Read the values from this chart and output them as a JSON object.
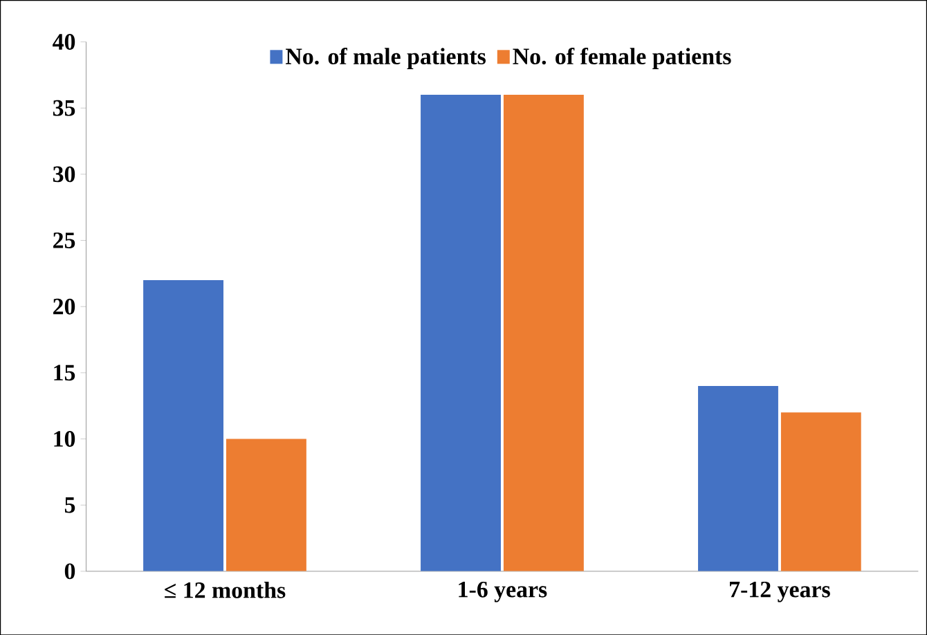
{
  "chart_data": {
    "type": "bar",
    "categories": [
      "≤ 12 months",
      "1-6 years",
      "7-12 years"
    ],
    "series": [
      {
        "name": "No. of male patients",
        "color": "#4472c4",
        "values": [
          22,
          36,
          14
        ]
      },
      {
        "name": "No. of female patients",
        "color": "#ed7d31",
        "values": [
          10,
          36,
          12
        ]
      }
    ],
    "ylim": [
      0,
      40
    ],
    "yticks": [
      0,
      5,
      10,
      15,
      20,
      25,
      30,
      35,
      40
    ],
    "legend": "top",
    "grid": false
  }
}
